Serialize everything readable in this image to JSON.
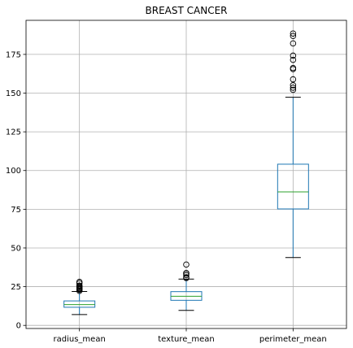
{
  "chart_data": {
    "type": "box",
    "title": "BREAST CANCER",
    "xlabel": "",
    "ylabel": "",
    "ylim": [
      -2,
      197
    ],
    "yticks": [
      0,
      25,
      50,
      75,
      100,
      125,
      150,
      175
    ],
    "grid": true,
    "colors": {
      "box": "#1f77b4",
      "median": "#2ca02c",
      "whisker": "#1f77b4",
      "cap": "#000000",
      "flier": "#000000",
      "grid": "#b0b0b0"
    },
    "categories": [
      "radius_mean",
      "texture_mean",
      "perimeter_mean"
    ],
    "boxes": [
      {
        "label": "radius_mean",
        "whisker_low": 7.0,
        "q1": 11.7,
        "median": 13.4,
        "q3": 15.8,
        "whisker_high": 21.9,
        "fliers": [
          22.3,
          23.0,
          23.5,
          24.0,
          24.6,
          25.2,
          25.7,
          27.2,
          28.1
        ]
      },
      {
        "label": "texture_mean",
        "whisker_low": 9.7,
        "q1": 16.2,
        "median": 18.8,
        "q3": 21.8,
        "whisker_high": 29.9,
        "fliers": [
          30.6,
          31.1,
          32.5,
          33.6,
          33.8,
          39.3
        ]
      },
      {
        "label": "perimeter_mean",
        "whisker_low": 43.8,
        "q1": 75.2,
        "median": 86.2,
        "q3": 104.1,
        "whisker_high": 147.3,
        "fliers": [
          152.1,
          153.5,
          155.1,
          158.9,
          165.5,
          166.2,
          171.5,
          174.2,
          182.1,
          186.9,
          188.5
        ]
      }
    ]
  }
}
